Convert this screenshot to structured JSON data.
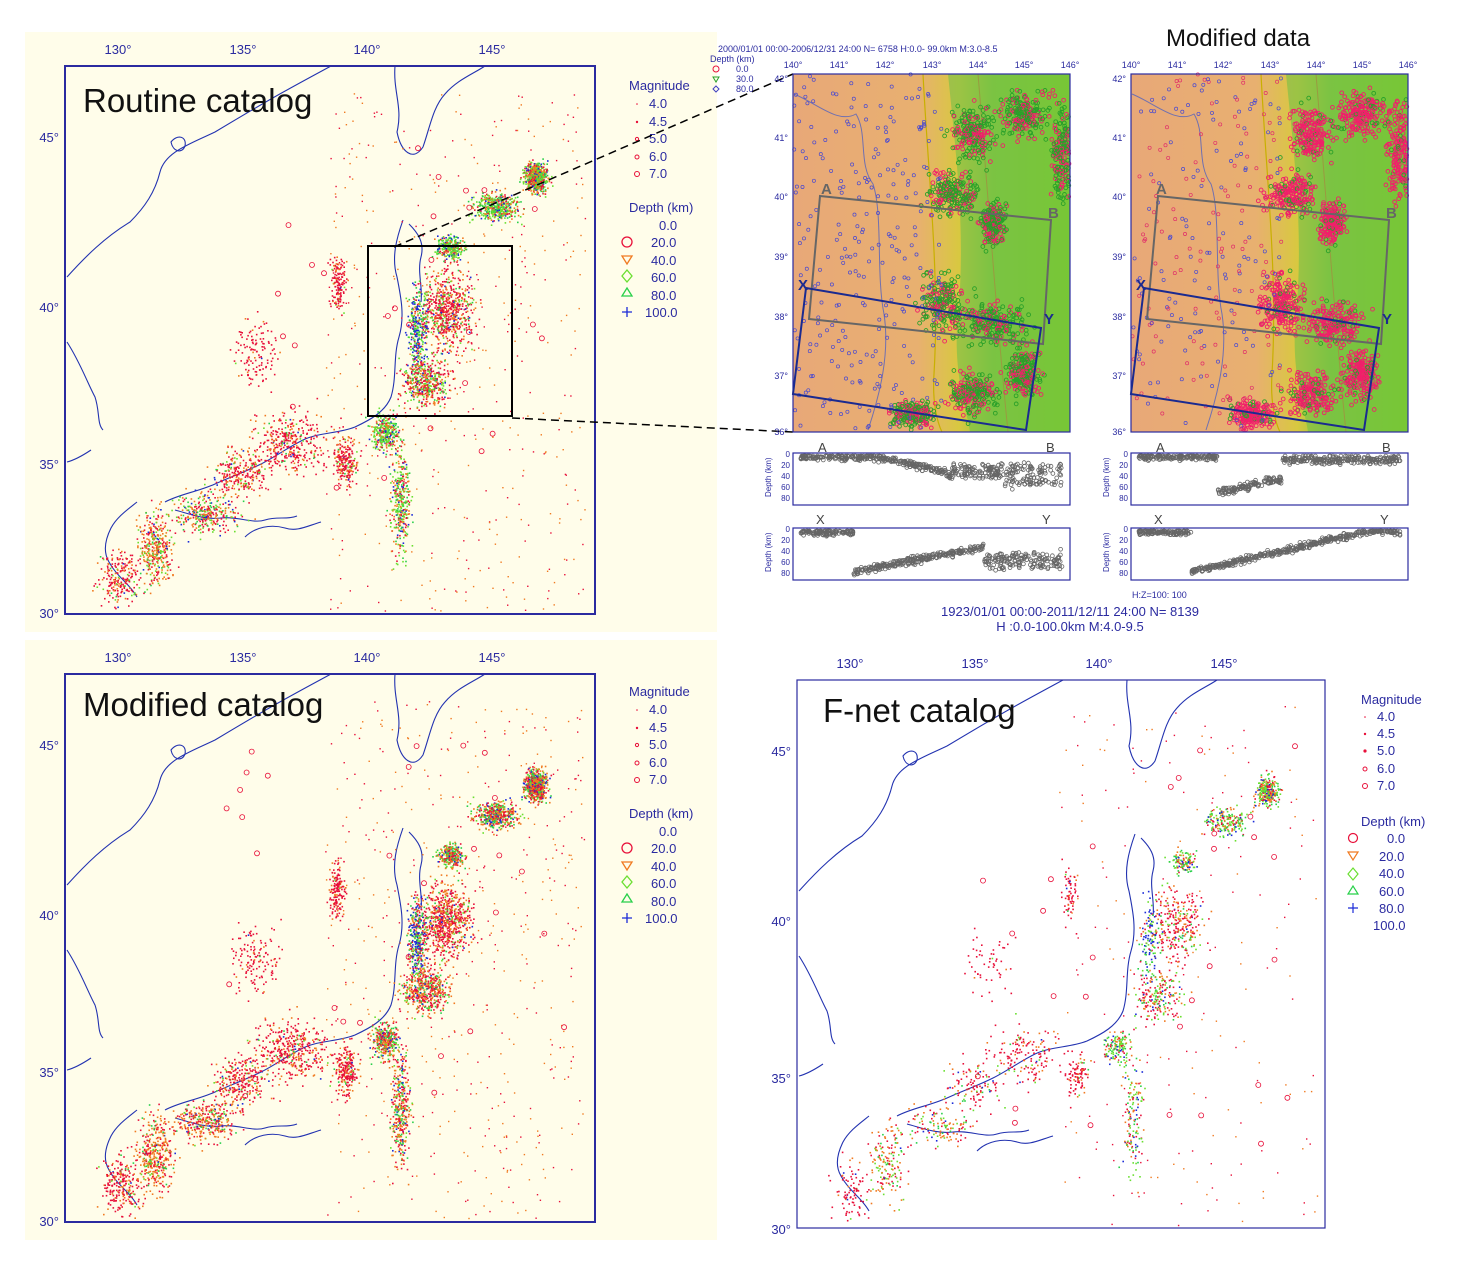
{
  "panels": {
    "routine": {
      "title": "Routine catalog",
      "lon_labels": [
        "130°",
        "135°",
        "140°",
        "145°"
      ],
      "lat_labels": [
        "45°",
        "40°",
        "35°",
        "30°"
      ]
    },
    "modified": {
      "title": "Modified catalog",
      "lon_labels": [
        "130°",
        "135°",
        "140°",
        "145°"
      ],
      "lat_labels": [
        "45°",
        "40°",
        "35°",
        "30°"
      ]
    },
    "fnet": {
      "title": "F-net catalog",
      "lon_labels": [
        "130°",
        "135°",
        "140°",
        "145°"
      ],
      "lat_labels": [
        "45°",
        "40°",
        "35°",
        "30°"
      ]
    }
  },
  "legend": {
    "magnitude_title": "Magnitude",
    "magnitudes": [
      "4.0",
      "4.5",
      "5.0",
      "6.0",
      "7.0"
    ],
    "depth_title": "Depth (km)",
    "depths": [
      "0.0",
      "20.0",
      "40.0",
      "60.0",
      "80.0",
      "100.0"
    ]
  },
  "zoom": {
    "original": {
      "header": "2000/01/01 00:00-2006/12/31 24:00  N= 6758  H:0.0- 99.0km  M:3.0-8.5",
      "depth_label": "Depth (km)",
      "depth_keys": [
        "0.0",
        "30.0",
        "80.0"
      ]
    },
    "modified_title": "Modified data",
    "lon_labels": [
      "140°",
      "141°",
      "142°",
      "143°",
      "144°",
      "145°",
      "146°"
    ],
    "lat_labels": [
      "42°",
      "41°",
      "40°",
      "39°",
      "38°",
      "37°",
      "36°"
    ],
    "points": {
      "A": "A",
      "B": "B",
      "X": "X",
      "Y": "Y"
    },
    "section_axis_label": "Depth (km)",
    "section_ticks": [
      "0",
      "20",
      "40",
      "60",
      "80"
    ],
    "footnote": "H:Z=100: 100",
    "caption_line1": "1923/01/01 00:00-2011/12/11 24:00   N=  8139",
    "caption_line2": "H :0.0-100.0km  M:4.0-9.5"
  },
  "colors": {
    "depth_0": "#e8103a",
    "depth_20": "#f07a20",
    "depth_40": "#6adf30",
    "depth_60": "#28d04a",
    "depth_80": "#1b2bd8",
    "coast": "#2232b0",
    "panel_bg": "#fffdea",
    "frame": "#2b2ba0",
    "section_dots": "#666666"
  }
}
